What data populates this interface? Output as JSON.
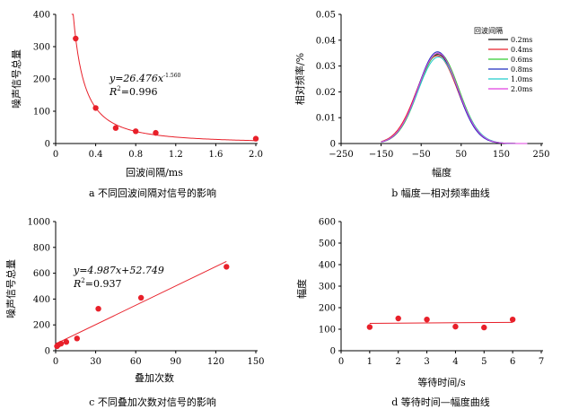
{
  "chart_data": [
    {
      "id": "a",
      "type": "scatter",
      "caption": "a 不同回波间隔对信号的影响",
      "xlabel": "回波间隔/ms",
      "ylabel": "噪声信号总量",
      "xlim": [
        0,
        2.0
      ],
      "ylim": [
        0,
        400
      ],
      "xticks": [
        0,
        0.4,
        0.8,
        1.2,
        1.6,
        2.0
      ],
      "xtick_labels": [
        "0",
        "0.4",
        "0.8",
        "1.2",
        "1.6",
        "2.0"
      ],
      "yticks": [
        0,
        100,
        200,
        300,
        400
      ],
      "ytick_labels": [
        "0",
        "100",
        "200",
        "300",
        "400"
      ],
      "points": [
        {
          "x": 0.2,
          "y": 325
        },
        {
          "x": 0.4,
          "y": 110
        },
        {
          "x": 0.6,
          "y": 48
        },
        {
          "x": 0.8,
          "y": 38
        },
        {
          "x": 1.0,
          "y": 33
        },
        {
          "x": 2.0,
          "y": 15
        }
      ],
      "fit": {
        "kind": "power",
        "a": 26.476,
        "b": -1.56,
        "x_from": 0.16,
        "x_to": 2.0
      },
      "equation_text": "y=26.476x",
      "equation_exp": "-1.560",
      "r2_text": "R",
      "r2_value": "=0.996",
      "marker_color": "#e8202a",
      "line_color": "#e8202a"
    },
    {
      "id": "b",
      "type": "line",
      "caption": "b 幅度—相对频率曲线",
      "xlabel": "幅度",
      "ylabel": "相对频率/%",
      "xlim": [
        -250,
        250
      ],
      "ylim": [
        0,
        0.05
      ],
      "xticks": [
        -250,
        -150,
        -50,
        50,
        150,
        250
      ],
      "xtick_labels": [
        "−250",
        "−150",
        "−50",
        "50",
        "150",
        "250"
      ],
      "yticks": [
        0,
        0.01,
        0.02,
        0.03,
        0.04,
        0.05
      ],
      "ytick_labels": [
        "0",
        "0.01",
        "0.02",
        "0.03",
        "0.04",
        "0.05"
      ],
      "legend_title": "回波间隔",
      "legend_position": "top-right",
      "x_from": -150,
      "x_to": 215,
      "series": [
        {
          "name": "0.2ms",
          "color": "#111111",
          "mean": -8,
          "sd": 50,
          "peak": 0.0345
        },
        {
          "name": "0.4ms",
          "color": "#e8202a",
          "mean": -10,
          "sd": 51,
          "peak": 0.034
        },
        {
          "name": "0.6ms",
          "color": "#33cc33",
          "mean": -6,
          "sd": 50,
          "peak": 0.035
        },
        {
          "name": "0.8ms",
          "color": "#1f2fbf",
          "mean": -9,
          "sd": 49,
          "peak": 0.0355
        },
        {
          "name": "1.0ms",
          "color": "#22cccc",
          "mean": -7,
          "sd": 51,
          "peak": 0.0335
        },
        {
          "name": "2.0ms",
          "color": "#e040e0",
          "mean": -8,
          "sd": 50,
          "peak": 0.035
        }
      ]
    },
    {
      "id": "c",
      "type": "scatter",
      "caption": "c 不同叠加次数对信号的影响",
      "xlabel": "叠加次数",
      "ylabel": "噪声信号总量",
      "xlim": [
        0,
        150
      ],
      "ylim": [
        0,
        1000
      ],
      "xticks": [
        0,
        30,
        60,
        90,
        120,
        150
      ],
      "xtick_labels": [
        "0",
        "30",
        "60",
        "90",
        "120",
        "150"
      ],
      "yticks": [
        0,
        200,
        400,
        600,
        800,
        1000
      ],
      "ytick_labels": [
        "0",
        "200",
        "400",
        "600",
        "800",
        "1000"
      ],
      "points": [
        {
          "x": 1,
          "y": 35
        },
        {
          "x": 2,
          "y": 45
        },
        {
          "x": 4,
          "y": 55
        },
        {
          "x": 8,
          "y": 68
        },
        {
          "x": 16,
          "y": 95
        },
        {
          "x": 32,
          "y": 325
        },
        {
          "x": 64,
          "y": 410
        },
        {
          "x": 128,
          "y": 650
        }
      ],
      "fit": {
        "kind": "linear",
        "slope": 4.987,
        "intercept": 52.749,
        "x_from": 0,
        "x_to": 128
      },
      "equation_text": "y=4.987x+52.749",
      "r2_text": "R",
      "r2_value": "=0.937",
      "marker_color": "#e8202a",
      "line_color": "#e8202a"
    },
    {
      "id": "d",
      "type": "scatter",
      "caption": "d 等待时间—幅度曲线",
      "xlabel": "等待时间/s",
      "ylabel": "幅度",
      "xlim": [
        0,
        7
      ],
      "ylim": [
        0,
        600
      ],
      "xticks": [
        0,
        1,
        2,
        3,
        4,
        5,
        6,
        7
      ],
      "xtick_labels": [
        "0",
        "1",
        "2",
        "3",
        "4",
        "5",
        "6",
        "7"
      ],
      "yticks": [
        0,
        100,
        200,
        300,
        400,
        500,
        600
      ],
      "ytick_labels": [
        "0",
        "100",
        "200",
        "300",
        "400",
        "500",
        "600"
      ],
      "points": [
        {
          "x": 1,
          "y": 110
        },
        {
          "x": 2,
          "y": 150
        },
        {
          "x": 3,
          "y": 145
        },
        {
          "x": 4,
          "y": 112
        },
        {
          "x": 5,
          "y": 108
        },
        {
          "x": 6,
          "y": 145
        }
      ],
      "fit": {
        "kind": "linear",
        "slope": 1.0,
        "intercept": 126,
        "x_from": 1,
        "x_to": 6
      },
      "marker_color": "#e8202a",
      "line_color": "#e8202a"
    }
  ]
}
